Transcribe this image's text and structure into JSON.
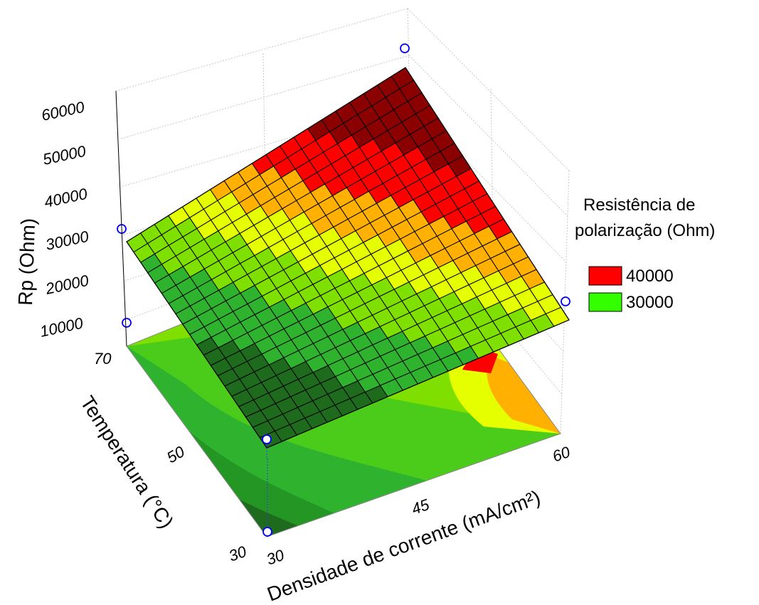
{
  "chart_data": {
    "type": "surface",
    "z_axis": {
      "label": "Rp (Ohm)",
      "ticks": [
        "60000",
        "50000",
        "40000",
        "30000",
        "20000",
        "10000"
      ]
    },
    "y_axis": {
      "label": "Temperatura (°C)",
      "ticks": [
        "70",
        "50",
        "30"
      ]
    },
    "x_axis": {
      "label": "Densidade de corrente (mA/cm²)",
      "ticks": [
        "30",
        "45",
        "60"
      ]
    },
    "legend": {
      "title_line1": "Resistência de",
      "title_line2": "polarização (Ohm)",
      "position": "right",
      "entries": [
        {
          "label": "40000",
          "color": "#ff0000"
        },
        {
          "label": "30000",
          "color": "#33ff00"
        }
      ]
    },
    "design_points": [
      {
        "x": 30,
        "y": 30,
        "z": 10000
      },
      {
        "x": 60,
        "y": 30,
        "z": 28000
      },
      {
        "x": 30,
        "y": 70,
        "z": 25000
      },
      {
        "x": 60,
        "y": 70,
        "z": 60000
      }
    ],
    "surface_grid": 20,
    "colors": {
      "dark_green": "#1e6b1e",
      "green": "#2fb32f",
      "light_green": "#7fe000",
      "yellow": "#e6ff00",
      "orange": "#ffb000",
      "red": "#ff0000",
      "dark_red": "#8b0000",
      "marker": "#0000ff"
    }
  }
}
